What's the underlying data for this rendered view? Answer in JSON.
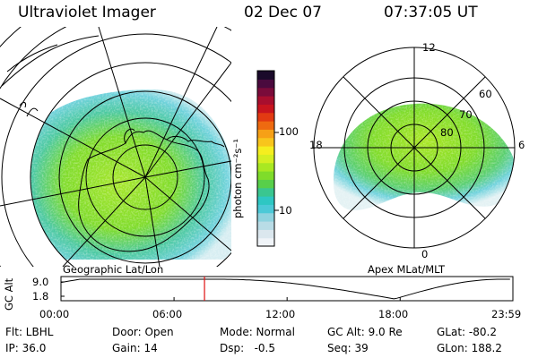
{
  "header": {
    "instrument": "Ultraviolet Imager",
    "date": "02 Dec 07",
    "time": "07:37:05 UT"
  },
  "left_map": {
    "caption": "Geographic Lat/Lon"
  },
  "right_map": {
    "caption": "Apex MLat/MLT",
    "mlt_labels": [
      "12",
      "18",
      "6",
      "0"
    ],
    "mlat_labels": [
      "60",
      "70",
      "80"
    ]
  },
  "colorbar": {
    "unit_label": "photon cm⁻²s⁻¹",
    "ticks": [
      "100",
      "10"
    ],
    "colors": [
      "#f0f4f8",
      "#dbe7ee",
      "#b9dce6",
      "#8fd3df",
      "#4cc9d7",
      "#2ec7c3",
      "#3ac690",
      "#58cf4a",
      "#7fdc2a",
      "#a9e822",
      "#d5ef22",
      "#f5ee1f",
      "#f8c51c",
      "#f6a016",
      "#ee6a10",
      "#e23a12",
      "#c8141e",
      "#a80e2e",
      "#7a0b3a",
      "#4a0a3e",
      "#1a0a2a"
    ]
  },
  "altitude_plot": {
    "axis_title": "GC Alt",
    "y_ticks": [
      "9.0",
      "1.8"
    ],
    "x_ticks": [
      "00:00",
      "06:00",
      "12:00",
      "18:00",
      "23:59"
    ],
    "marker_time": "07:37"
  },
  "footer": {
    "filter": "Flt: LBHL",
    "ip": "IP: 36.0",
    "door": "Door: Open",
    "gain": "Gain: 14",
    "mode": "Mode: Normal",
    "dsp": "Dsp:   -0.5",
    "gc_alt": "GC Alt: 9.0 Re",
    "seq": "Seq: 39",
    "glat": "GLat: -80.2",
    "glon": "GLon: 188.2"
  }
}
